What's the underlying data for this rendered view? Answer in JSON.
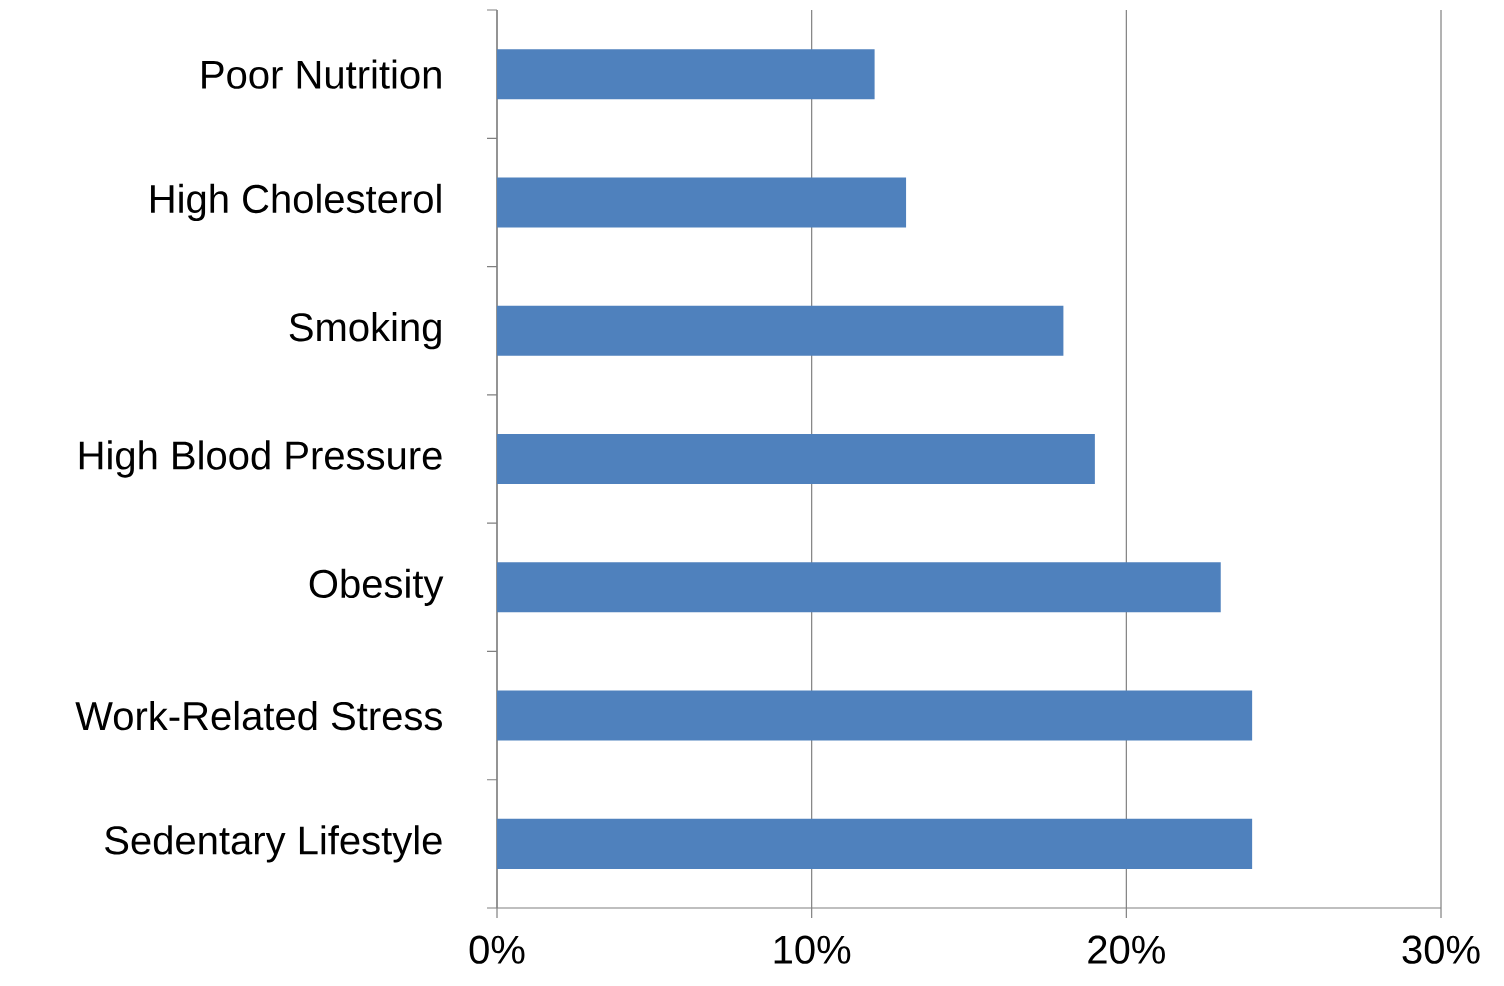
{
  "chart_data": {
    "type": "bar",
    "orientation": "horizontal",
    "categories": [
      "Poor Nutrition",
      "High Cholesterol",
      "Smoking",
      "High Blood Pressure",
      "Obesity",
      "Work-Related Stress",
      "Sedentary Lifestyle"
    ],
    "values": [
      12,
      13,
      18,
      19,
      23,
      24,
      24
    ],
    "color": "#4f81bd",
    "xlim": [
      0,
      30
    ],
    "xticks": [
      {
        "value": 0,
        "label": "0%"
      },
      {
        "value": 10,
        "label": "10%"
      },
      {
        "value": 20,
        "label": "20%"
      },
      {
        "value": 30,
        "label": "30%"
      }
    ],
    "grid": "x"
  }
}
